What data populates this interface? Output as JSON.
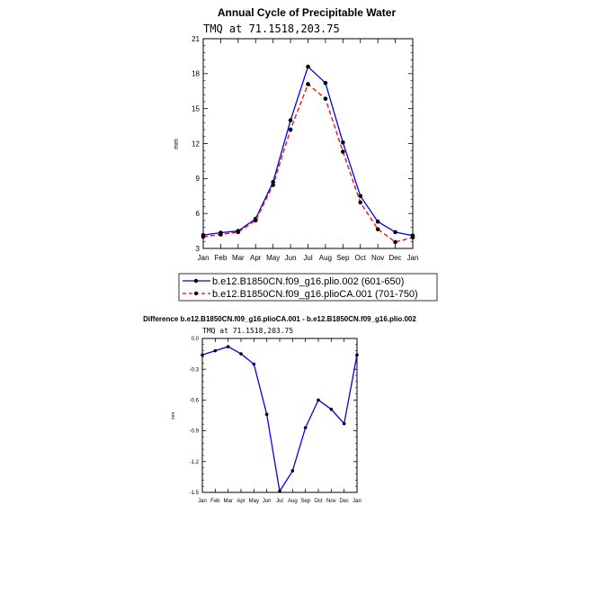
{
  "chart_data": [
    {
      "type": "line",
      "title": "Annual Cycle of Precipitable Water",
      "subtitle": "TMQ at 71.1518,203.75",
      "xlabel": "",
      "ylabel": "mm",
      "categories": [
        "Jan",
        "Feb",
        "Mar",
        "Apr",
        "May",
        "Jun",
        "Jul",
        "Aug",
        "Sep",
        "Oct",
        "Nov",
        "Dec",
        "Jan"
      ],
      "ylim": [
        3,
        21
      ],
      "yticks": [
        "3",
        "6",
        "9",
        "12",
        "15",
        "18",
        "21"
      ],
      "series": [
        {
          "name": "b.e12.B1850CN.f09_g16.plio.002 (601-650)",
          "color": "#0000ff",
          "dash": "solid",
          "values": [
            4.15,
            4.35,
            4.5,
            5.55,
            8.7,
            14.0,
            18.6,
            17.2,
            12.1,
            7.5,
            5.3,
            4.4,
            4.1
          ]
        },
        {
          "name": "b.e12.B1850CN.f09_g16.plioCA.001 (701-750)",
          "color": "#ff0000",
          "dash": "dashed",
          "values": [
            4.0,
            4.2,
            4.4,
            5.4,
            8.45,
            13.2,
            17.1,
            15.85,
            11.3,
            6.95,
            4.65,
            3.55,
            3.95
          ]
        }
      ],
      "legend_position": "bottom"
    },
    {
      "type": "line",
      "title": "Difference b.e12.B1850CN.f09_g16.plioCA.001 - b.e12.B1850CN.f09_g16.plio.002",
      "subtitle": "TMQ at 71.1518,203.75",
      "xlabel": "",
      "ylabel": "mm",
      "categories": [
        "Jan",
        "Feb",
        "Mar",
        "Apr",
        "May",
        "Jun",
        "Jul",
        "Aug",
        "Sep",
        "Oct",
        "Nov",
        "Dec",
        "Jan"
      ],
      "ylim": [
        -1.5,
        0.0
      ],
      "yticks": [
        "-1.5",
        "-1.2",
        "-0.9",
        "-0.6",
        "-0.3",
        "0.0"
      ],
      "series": [
        {
          "color": "#0000ff",
          "dash": "solid",
          "values": [
            -0.16,
            -0.12,
            -0.08,
            -0.15,
            -0.25,
            -0.74,
            -1.49,
            -1.29,
            -0.87,
            -0.6,
            -0.69,
            -0.83,
            -0.16
          ]
        }
      ]
    }
  ]
}
